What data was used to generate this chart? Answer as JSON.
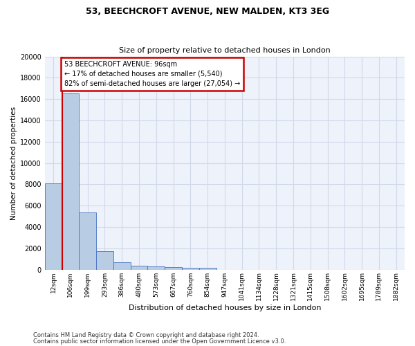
{
  "title1": "53, BEECHCROFT AVENUE, NEW MALDEN, KT3 3EG",
  "title2": "Size of property relative to detached houses in London",
  "xlabel": "Distribution of detached houses by size in London",
  "ylabel": "Number of detached properties",
  "bar_color": "#b8cce4",
  "bar_edge_color": "#4472c4",
  "categories": [
    "12sqm",
    "106sqm",
    "199sqm",
    "293sqm",
    "386sqm",
    "480sqm",
    "573sqm",
    "667sqm",
    "760sqm",
    "854sqm",
    "947sqm",
    "1041sqm",
    "1134sqm",
    "1228sqm",
    "1321sqm",
    "1415sqm",
    "1508sqm",
    "1602sqm",
    "1695sqm",
    "1789sqm",
    "1882sqm"
  ],
  "values": [
    8100,
    16500,
    5350,
    1750,
    700,
    380,
    280,
    220,
    180,
    150,
    0,
    0,
    0,
    0,
    0,
    0,
    0,
    0,
    0,
    0,
    0
  ],
  "ylim": [
    0,
    20000
  ],
  "yticks": [
    0,
    2000,
    4000,
    6000,
    8000,
    10000,
    12000,
    14000,
    16000,
    18000,
    20000
  ],
  "annotation_text": "53 BEECHCROFT AVENUE: 96sqm\n← 17% of detached houses are smaller (5,540)\n82% of semi-detached houses are larger (27,054) →",
  "annotation_box_color": "#ffffff",
  "annotation_box_edge_color": "#cc0000",
  "property_line_color": "#cc0000",
  "grid_color": "#d0d8e8",
  "background_color": "#eef2fa",
  "footer1": "Contains HM Land Registry data © Crown copyright and database right 2024.",
  "footer2": "Contains public sector information licensed under the Open Government Licence v3.0."
}
